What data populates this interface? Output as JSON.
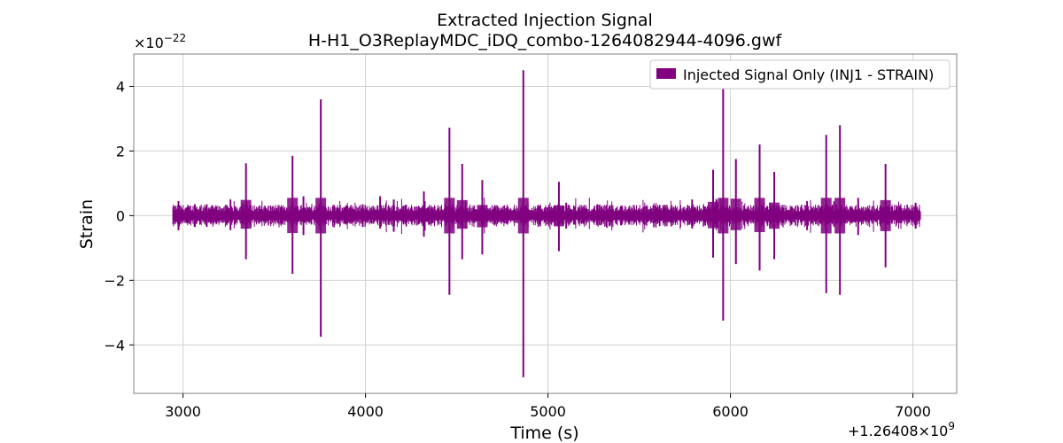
{
  "chart_data": {
    "type": "line",
    "title": "Extracted Injection Signal",
    "subtitle": "H-H1_O3ReplayMDC_iDQ_combo-1264082944-4096.gwf",
    "xlabel": "Time (s)",
    "ylabel": "Strain",
    "x_offset_label": "+1.26408×10",
    "x_offset_exponent": "9",
    "y_scale_label": "×10",
    "y_scale_exponent": "−22",
    "xlim": [
      2730,
      7240
    ],
    "ylim": [
      -5.5,
      5.0
    ],
    "x_ticks": [
      3000,
      4000,
      5000,
      6000,
      7000
    ],
    "x_tick_labels": [
      "3000",
      "4000",
      "5000",
      "6000",
      "7000"
    ],
    "y_ticks": [
      -4,
      -2,
      0,
      2,
      4
    ],
    "y_tick_labels": [
      "−4",
      "−2",
      "0",
      "2",
      "4"
    ],
    "grid": true,
    "legend_position": "top-right",
    "color": "#800080",
    "series": [
      {
        "name": "Injected Signal Only (INJ1 - STRAIN)",
        "data_start": 2944,
        "data_end": 7040,
        "baseline_amplitude": 0.12,
        "spikes": [
          {
            "t": 2975,
            "max": 0.45,
            "min": -0.45
          },
          {
            "t": 3065,
            "max": 0.35,
            "min": -0.35
          },
          {
            "t": 3130,
            "max": 0.35,
            "min": -0.35
          },
          {
            "t": 3260,
            "max": 0.5,
            "min": -0.45
          },
          {
            "t": 3345,
            "max": 1.62,
            "min": -1.35
          },
          {
            "t": 3600,
            "max": 1.85,
            "min": -1.8
          },
          {
            "t": 3660,
            "max": 0.6,
            "min": -0.6
          },
          {
            "t": 3755,
            "max": 3.6,
            "min": -3.75
          },
          {
            "t": 3985,
            "max": 0.35,
            "min": -0.35
          },
          {
            "t": 4080,
            "max": 0.6,
            "min": -0.4
          },
          {
            "t": 4155,
            "max": 0.5,
            "min": -0.5
          },
          {
            "t": 4320,
            "max": 0.75,
            "min": -0.65
          },
          {
            "t": 4460,
            "max": 2.72,
            "min": -2.45
          },
          {
            "t": 4530,
            "max": 1.6,
            "min": -1.35
          },
          {
            "t": 4640,
            "max": 1.1,
            "min": -1.2
          },
          {
            "t": 4865,
            "max": 4.5,
            "min": -5.0
          },
          {
            "t": 5060,
            "max": 1.05,
            "min": -1.1
          },
          {
            "t": 5100,
            "max": 0.4,
            "min": -0.4
          },
          {
            "t": 5270,
            "max": 0.35,
            "min": -0.3
          },
          {
            "t": 5400,
            "max": 0.3,
            "min": -0.3
          },
          {
            "t": 5790,
            "max": 0.5,
            "min": -0.4
          },
          {
            "t": 5905,
            "max": 1.42,
            "min": -1.3
          },
          {
            "t": 5960,
            "max": 4.05,
            "min": -3.25
          },
          {
            "t": 6030,
            "max": 1.75,
            "min": -1.5
          },
          {
            "t": 6160,
            "max": 2.2,
            "min": -1.7
          },
          {
            "t": 6240,
            "max": 1.35,
            "min": -1.35
          },
          {
            "t": 6420,
            "max": 0.45,
            "min": -0.45
          },
          {
            "t": 6525,
            "max": 2.5,
            "min": -2.4
          },
          {
            "t": 6600,
            "max": 2.8,
            "min": -2.45
          },
          {
            "t": 6700,
            "max": 0.55,
            "min": -0.6
          },
          {
            "t": 6850,
            "max": 1.6,
            "min": -1.6
          },
          {
            "t": 7015,
            "max": 0.4,
            "min": -0.4
          }
        ]
      }
    ]
  }
}
